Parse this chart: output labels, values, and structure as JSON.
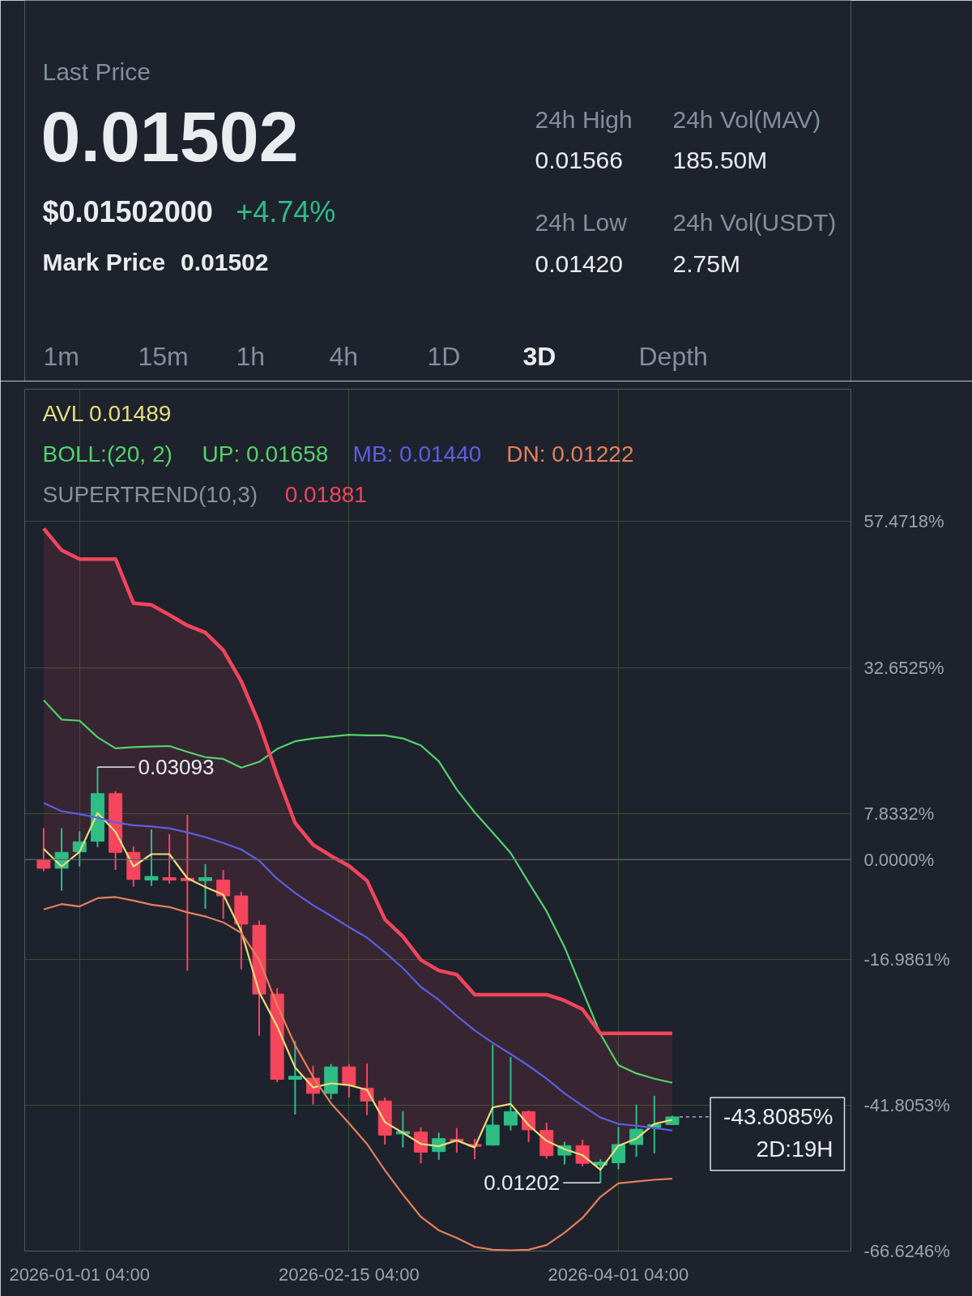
{
  "chart_data": [
    {
      "type": "other",
      "title": "Last Price",
      "annotations": [
        "0.01502",
        "$0.01502000",
        "+4.74%",
        "Mark Price",
        "0.01502",
        "24h High",
        "24h Vol(MAV)",
        "0.01566",
        "185.50M",
        "24h Low",
        "24h Vol(USDT)",
        "0.01420",
        "2.75M",
        "1m",
        "15m",
        "1h",
        "4h",
        "1D",
        "3D",
        "Depth"
      ]
    },
    {
      "type": "candlestick",
      "x": [
        "2025-12-26T04:00",
        "2025-12-29T04:00",
        "2026-01-01T04:00",
        "2026-01-04T04:00",
        "2026-01-07T04:00",
        "2026-01-10T04:00",
        "2026-01-13T04:00",
        "2026-01-16T04:00",
        "2026-01-19T04:00",
        "2026-01-22T04:00",
        "2026-01-25T04:00",
        "2026-01-28T04:00",
        "2026-01-31T04:00",
        "2026-02-03T04:00",
        "2026-02-06T04:00",
        "2026-02-09T04:00",
        "2026-02-12T04:00",
        "2026-02-15T04:00",
        "2026-02-18T04:00",
        "2026-02-21T04:00",
        "2026-02-24T04:00",
        "2026-02-27T04:00",
        "2026-03-02T04:00",
        "2026-03-05T04:00",
        "2026-03-08T04:00",
        "2026-03-11T04:00",
        "2026-03-14T04:00",
        "2026-03-17T04:00",
        "2026-03-20T04:00",
        "2026-03-23T04:00",
        "2026-03-26T04:00",
        "2026-03-29T04:00",
        "2026-04-01T04:00",
        "2026-04-04T04:00",
        "2026-04-07T04:00",
        "2026-04-10T04:00"
      ],
      "ohlc": [
        [
          -0.1,
          5.3,
          -2.0,
          -1.5
        ],
        [
          -1.5,
          5.3,
          -5.3,
          1.2
        ],
        [
          1.3,
          4.8,
          -1.2,
          3.0
        ],
        [
          3.1,
          15.7,
          2.1,
          11.2
        ],
        [
          11.2,
          11.6,
          -1.8,
          1.2
        ],
        [
          1.2,
          2.2,
          -4.6,
          -3.4
        ],
        [
          -3.5,
          5.1,
          -4.5,
          -2.9
        ],
        [
          -3.1,
          4.3,
          -4.1,
          -3.5
        ],
        [
          -3.2,
          7.6,
          -18.9,
          -3.6
        ],
        [
          -3.6,
          -0.8,
          -8.4,
          -3.1
        ],
        [
          -3.5,
          -1.8,
          -10.1,
          -6.2
        ],
        [
          -6.2,
          -5.5,
          -18.7,
          -11.0
        ],
        [
          -11.2,
          -10.4,
          -30.0,
          -22.9
        ],
        [
          -22.9,
          -21.9,
          -37.9,
          -37.4
        ],
        [
          -37.4,
          -30.9,
          -43.4,
          -36.9
        ],
        [
          -37.2,
          -35.1,
          -41.7,
          -39.8
        ],
        [
          -39.8,
          -34.8,
          -40.8,
          -35.3
        ],
        [
          -35.3,
          -34.8,
          -40.5,
          -38.4
        ],
        [
          -38.9,
          -34.7,
          -43.5,
          -41.1
        ],
        [
          -41.1,
          -40.5,
          -48.5,
          -46.9
        ],
        [
          -46.7,
          -42.8,
          -49.0,
          -46.3
        ],
        [
          -46.4,
          -45.6,
          -51.7,
          -49.8
        ],
        [
          -49.7,
          -46.5,
          -51.1,
          -47.5
        ],
        [
          -47.6,
          -45.7,
          -49.9,
          -47.9
        ],
        [
          -48.5,
          -47.5,
          -51.0,
          -48.8
        ],
        [
          -48.6,
          -31.5,
          -48.7,
          -45.2
        ],
        [
          -45.2,
          -33.6,
          -46.1,
          -42.9
        ],
        [
          -42.9,
          -42.7,
          -48.1,
          -46.0
        ],
        [
          -46.1,
          -44.8,
          -50.9,
          -50.4
        ],
        [
          -50.3,
          -48.0,
          -51.9,
          -48.7
        ],
        [
          -48.7,
          -47.7,
          -52.2,
          -51.7
        ],
        [
          -52.0,
          -51.0,
          -55.0,
          -51.5
        ],
        [
          -51.6,
          -45.5,
          -52.7,
          -48.5
        ],
        [
          -48.5,
          -41.7,
          -50.6,
          -45.9
        ],
        [
          -45.6,
          -40.2,
          -50.0,
          -45.1
        ],
        [
          -45.1,
          -43.6,
          -45.2,
          -43.8085
        ]
      ],
      "colors": [
        "#f6465d",
        "#2ebd85",
        "#2ebd85",
        "#2ebd85",
        "#f6465d",
        "#f6465d",
        "#2ebd85",
        "#f6465d",
        "#f6465d",
        "#2ebd85",
        "#f6465d",
        "#f6465d",
        "#f6465d",
        "#f6465d",
        "#2ebd85",
        "#f6465d",
        "#2ebd85",
        "#f6465d",
        "#f6465d",
        "#f6465d",
        "#2ebd85",
        "#f6465d",
        "#2ebd85",
        "#f6465d",
        "#f6465d",
        "#2ebd85",
        "#2ebd85",
        "#f6465d",
        "#f6465d",
        "#2ebd85",
        "#f6465d",
        "#2ebd85",
        "#2ebd85",
        "#2ebd85",
        "#2ebd85",
        "#2ebd85"
      ],
      "series": [
        {
          "name": "AVL 0.01489",
          "type": "line",
          "color": "#e8de7c",
          "values": [
            1.8,
            -1.2,
            1.3,
            7.9,
            4.7,
            -1.2,
            0.9,
            0.9,
            -3.2,
            -4.7,
            -6.0,
            -12.2,
            -22.6,
            -28.4,
            -35.4,
            -38.8,
            -38.1,
            -38.4,
            -39.2,
            -44.7,
            -46.5,
            -48.4,
            -48.8,
            -47.8,
            -49.0,
            -42.2,
            -41.6,
            -45.2,
            -47.9,
            -49.3,
            -50.3,
            -52.8,
            -48.7,
            -47.5,
            -45.0,
            -44.3
          ]
        },
        {
          "name": "UP: 0.01658",
          "type": "line",
          "color": "#55d26b",
          "values": [
            27.1,
            23.8,
            23.6,
            20.8,
            18.9,
            19.1,
            19.2,
            19.3,
            18.3,
            17.4,
            17.1,
            15.6,
            16.6,
            18.8,
            20.1,
            20.6,
            20.9,
            21.2,
            21.1,
            21.1,
            20.6,
            19.4,
            16.7,
            11.9,
            8.0,
            4.6,
            1.1,
            -3.9,
            -8.8,
            -14.9,
            -22.3,
            -29.7,
            -35.0,
            -36.4,
            -37.3,
            -38.0
          ]
        },
        {
          "name": "MB: 0.01440",
          "type": "line",
          "color": "#5c5fe0",
          "values": [
            9.6,
            8.2,
            7.7,
            7.1,
            6.3,
            5.8,
            5.6,
            5.3,
            4.6,
            3.8,
            2.8,
            1.7,
            -0.2,
            -3.3,
            -5.7,
            -7.8,
            -9.6,
            -11.5,
            -13.3,
            -15.8,
            -18.5,
            -21.7,
            -23.9,
            -26.6,
            -29.1,
            -31.2,
            -33.1,
            -35.1,
            -37.3,
            -39.8,
            -41.9,
            -43.9,
            -45.0,
            -45.3,
            -45.7,
            -46.1
          ]
        },
        {
          "name": "DN: 0.01222",
          "type": "line",
          "color": "#e4805c",
          "values": [
            -8.5,
            -7.6,
            -8.0,
            -6.6,
            -6.4,
            -7.0,
            -7.7,
            -8.1,
            -9.0,
            -9.7,
            -10.7,
            -12.5,
            -17.1,
            -24.8,
            -31.6,
            -37.0,
            -41.5,
            -44.9,
            -48.4,
            -52.9,
            -57.0,
            -60.8,
            -63.1,
            -64.4,
            -65.9,
            -66.4,
            -66.5,
            -66.4,
            -65.6,
            -63.5,
            -61.0,
            -57.4,
            -55.1,
            -54.8,
            -54.5,
            -54.3
          ]
        },
        {
          "name": "0.01881",
          "type": "line",
          "color": "#f0455c",
          "values": [
            56.3,
            52.6,
            51.1,
            51.1,
            51.1,
            43.6,
            43.3,
            41.6,
            39.8,
            38.6,
            35.6,
            30.3,
            23.1,
            14.3,
            6.2,
            2.5,
            0.6,
            -1.1,
            -3.6,
            -10.2,
            -13.1,
            -17.1,
            -18.9,
            -19.6,
            -23.0,
            -23.0,
            -23.0,
            -23.0,
            -23.0,
            -24.0,
            -25.5,
            -29.6,
            -29.6,
            -29.6,
            -29.6,
            -29.6
          ],
          "upper": [
            56.3,
            52.6,
            51.1,
            51.1,
            51.1,
            43.6,
            43.3,
            41.6,
            39.8,
            38.6,
            35.6,
            30.3,
            23.1,
            14.3,
            6.2,
            2.5,
            0.6,
            -1.1,
            -3.6,
            -10.2,
            -13.1,
            -17.1,
            -18.9,
            -19.6,
            -23.0,
            -23.0,
            -23.0,
            -23.0,
            -23.0,
            -24.0,
            -25.5,
            -29.6,
            -29.6,
            -29.6,
            -29.6,
            -29.6
          ],
          "lower": [
            1.8,
            -1.2,
            1.3,
            7.9,
            4.7,
            -1.2,
            0.9,
            0.9,
            -3.2,
            -4.7,
            -6.0,
            -12.2,
            -22.6,
            -28.4,
            -35.4,
            -38.8,
            -38.1,
            -38.4,
            -39.2,
            -44.7,
            -46.5,
            -48.4,
            -48.8,
            -47.8,
            -49.0,
            -42.2,
            -41.6,
            -45.2,
            -47.9,
            -49.3,
            -50.3,
            -52.8,
            -48.7,
            -47.5,
            -45.0,
            -44.3
          ]
        }
      ],
      "annotations": [
        "BOLL:(20, 2)",
        "SUPERTREND(10,3)",
        {
          "text": "0.03093",
          "x": "2026-01-04T04:00",
          "y": 15.7
        },
        {
          "text": "0.01202",
          "x": "2026-03-29T04:00",
          "y": -55.0
        },
        {
          "text": "-43.8085%",
          "x": "2026-04-10T04:00",
          "y": -43.8085
        },
        "2D:19H"
      ],
      "xlim": [
        "2025-12-23",
        "2026-05-10"
      ],
      "xticks": [
        {
          "value": "2026-01-01T04:00",
          "label": "2026-01-01 04:00"
        },
        {
          "value": "2026-02-15T04:00",
          "label": "2026-02-15 04:00"
        },
        {
          "value": "2026-04-01T04:00",
          "label": "2026-04-01 04:00"
        }
      ],
      "ylim": [
        -66.6246,
        80
      ],
      "yticks": [
        {
          "value": 57.4718,
          "label": "57.4718%"
        },
        {
          "value": 32.6525,
          "label": "32.6525%"
        },
        {
          "value": 7.8332,
          "label": "7.8332%"
        },
        {
          "value": 0,
          "label": "0.0000%"
        },
        {
          "value": -16.9861,
          "label": "-16.9861%"
        },
        {
          "value": -41.8053,
          "label": "-41.8053%"
        },
        {
          "value": -66.6246,
          "label": "-66.6246%"
        }
      ],
      "ref_lines": [
        {
          "axis": "y",
          "value": 0,
          "color": "#5d6170"
        }
      ],
      "grid": true,
      "legend": "top left"
    }
  ]
}
